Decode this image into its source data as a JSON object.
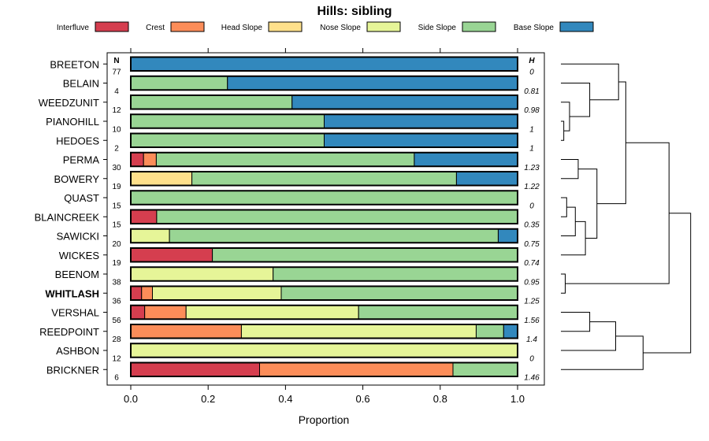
{
  "chart_data": {
    "type": "bar",
    "orientation": "horizontal",
    "stacked": true,
    "title": "Hills: sibling",
    "xlabel": "Proportion",
    "ylabel": "",
    "xlim": [
      0,
      1
    ],
    "xticks": [
      "0.0",
      "0.2",
      "0.4",
      "0.6",
      "0.8",
      "1.0"
    ],
    "n_header": "N",
    "h_header": "H",
    "legend": [
      {
        "name": "Interfluve",
        "color": "#D53E4F"
      },
      {
        "name": "Crest",
        "color": "#FC8D59"
      },
      {
        "name": "Head Slope",
        "color": "#FEE08B"
      },
      {
        "name": "Nose Slope",
        "color": "#E6F598"
      },
      {
        "name": "Side Slope",
        "color": "#99D594"
      },
      {
        "name": "Base Slope",
        "color": "#3288BD"
      }
    ],
    "rows": [
      {
        "label": "BREETON",
        "n": "77",
        "h": "0",
        "bold": false,
        "values": [
          0,
          0,
          0,
          0,
          0,
          1
        ]
      },
      {
        "label": "BELAIN",
        "n": "4",
        "h": "0.81",
        "bold": false,
        "values": [
          0,
          0,
          0,
          0,
          0.25,
          0.75
        ]
      },
      {
        "label": "WEEDZUNIT",
        "n": "12",
        "h": "0.98",
        "bold": false,
        "values": [
          0,
          0,
          0,
          0,
          0.417,
          0.583
        ]
      },
      {
        "label": "PIANOHILL",
        "n": "10",
        "h": "1",
        "bold": false,
        "values": [
          0,
          0,
          0,
          0,
          0.5,
          0.5
        ]
      },
      {
        "label": "HEDOES",
        "n": "2",
        "h": "1",
        "bold": false,
        "values": [
          0,
          0,
          0,
          0,
          0.5,
          0.5
        ]
      },
      {
        "label": "PERMA",
        "n": "30",
        "h": "1.23",
        "bold": false,
        "values": [
          0.033,
          0.033,
          0,
          0,
          0.667,
          0.267
        ]
      },
      {
        "label": "BOWERY",
        "n": "19",
        "h": "1.22",
        "bold": false,
        "values": [
          0,
          0,
          0.158,
          0,
          0.684,
          0.158
        ]
      },
      {
        "label": "QUAST",
        "n": "15",
        "h": "0",
        "bold": false,
        "values": [
          0,
          0,
          0,
          0,
          1,
          0
        ]
      },
      {
        "label": "BLAINCREEK",
        "n": "15",
        "h": "0.35",
        "bold": false,
        "values": [
          0.067,
          0,
          0,
          0,
          0.933,
          0
        ]
      },
      {
        "label": "SAWICKI",
        "n": "20",
        "h": "0.75",
        "bold": false,
        "values": [
          0,
          0,
          0,
          0.1,
          0.85,
          0.05
        ]
      },
      {
        "label": "WICKES",
        "n": "19",
        "h": "0.74",
        "bold": false,
        "values": [
          0.211,
          0,
          0,
          0,
          0.789,
          0
        ]
      },
      {
        "label": "BEENOM",
        "n": "38",
        "h": "0.95",
        "bold": false,
        "values": [
          0,
          0,
          0,
          0.368,
          0.632,
          0
        ]
      },
      {
        "label": "WHITLASH",
        "n": "36",
        "h": "1.25",
        "bold": true,
        "values": [
          0.028,
          0.028,
          0,
          0.333,
          0.611,
          0
        ]
      },
      {
        "label": "VERSHAL",
        "n": "56",
        "h": "1.56",
        "bold": false,
        "values": [
          0.036,
          0.107,
          0,
          0.446,
          0.411,
          0
        ]
      },
      {
        "label": "REEDPOINT",
        "n": "28",
        "h": "1.4",
        "bold": false,
        "values": [
          0,
          0.286,
          0,
          0.607,
          0.071,
          0.036
        ]
      },
      {
        "label": "ASHBON",
        "n": "12",
        "h": "0",
        "bold": false,
        "values": [
          0,
          0,
          0,
          1,
          0,
          0
        ]
      },
      {
        "label": "BRICKNER",
        "n": "6",
        "h": "1.46",
        "bold": false,
        "values": [
          0.333,
          0.5,
          0,
          0,
          0.167,
          0
        ]
      }
    ],
    "dendrogram": {
      "leaves": 17,
      "merges": [
        {
          "a": "L3",
          "b": "L4",
          "height": 0.02
        },
        {
          "a": "M0",
          "b": "L2",
          "height": 0.06
        },
        {
          "a": "M1",
          "b": "L1",
          "height": 0.2
        },
        {
          "a": "M2",
          "b": "L0",
          "height": 0.4
        },
        {
          "a": "L5",
          "b": "L6",
          "height": 0.12
        },
        {
          "a": "L7",
          "b": "L8",
          "height": 0.04
        },
        {
          "a": "M5",
          "b": "L9",
          "height": 0.1
        },
        {
          "a": "M6",
          "b": "L10",
          "height": 0.17
        },
        {
          "a": "M4",
          "b": "M7",
          "height": 0.25
        },
        {
          "a": "M3",
          "b": "M8",
          "height": 0.45
        },
        {
          "a": "L11",
          "b": "L12",
          "height": 0.03
        },
        {
          "a": "M9",
          "b": "M10",
          "height": 0.75
        },
        {
          "a": "L13",
          "b": "L14",
          "height": 0.2
        },
        {
          "a": "M12",
          "b": "L15",
          "height": 0.38
        },
        {
          "a": "M13",
          "b": "L16",
          "height": 0.57
        },
        {
          "a": "M11",
          "b": "M14",
          "height": 0.9
        }
      ]
    }
  }
}
